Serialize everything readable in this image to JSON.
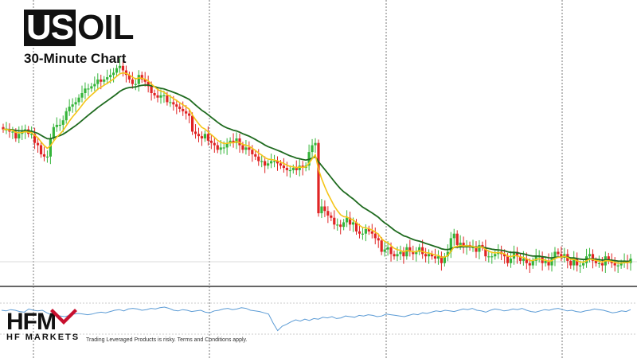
{
  "header": {
    "symbol_highlight": "US",
    "symbol_rest": "OIL",
    "subtitle": "30-Minute Chart"
  },
  "brand": {
    "logo_text": "HFM",
    "name": "HF MARKETS",
    "disclaimer": "Trading Leveraged Products is risky. Terms and Conditions apply."
  },
  "colors": {
    "bull": "#35b53a",
    "bear": "#e02424",
    "fast_ma": "#f5c518",
    "slow_ma": "#1f6b1f",
    "oscillator": "#5b9bd5",
    "grid": "#555555",
    "brand": "#111111",
    "brand_accent": "#c8102e"
  },
  "chart_data": {
    "type": "candlestick",
    "series": [
      {
        "kind": "candles",
        "close": [
          64,
          64,
          63,
          63,
          60,
          62,
          63,
          64,
          62,
          62,
          58,
          57,
          53,
          52,
          52,
          60,
          65,
          66,
          66,
          68,
          72,
          74,
          75,
          76,
          78,
          80,
          82,
          82,
          83,
          84,
          86,
          85,
          86,
          87,
          88,
          89,
          91,
          92,
          90,
          88,
          86,
          84,
          84,
          88,
          86,
          85,
          83,
          80,
          79,
          78,
          79,
          79,
          76,
          76,
          75,
          74,
          73,
          72,
          71,
          70,
          63,
          62,
          61,
          60,
          62,
          59,
          58,
          57,
          55,
          56,
          56,
          58,
          59,
          58,
          60,
          57,
          55,
          56,
          55,
          53,
          52,
          50,
          50,
          48,
          49,
          50,
          50,
          49,
          48,
          47,
          46,
          46,
          47,
          46,
          48,
          47,
          48,
          54,
          57,
          58,
          27,
          30,
          28,
          26,
          25,
          22,
          22,
          21,
          23,
          25,
          22,
          23,
          19,
          18,
          18,
          20,
          19,
          18,
          16,
          15,
          10,
          11,
          12,
          9,
          8,
          9,
          10,
          8,
          12,
          10,
          9,
          10,
          12,
          9,
          8,
          9,
          8,
          7,
          8,
          5,
          8,
          10,
          16,
          18,
          13,
          14,
          12,
          13,
          12,
          12,
          10,
          13,
          12,
          8,
          8,
          8,
          9,
          10,
          9,
          8,
          5,
          7,
          10,
          8,
          6,
          7,
          5,
          4,
          6,
          8,
          8,
          5,
          6,
          4,
          7,
          10,
          9,
          8,
          9,
          6,
          4,
          7,
          4,
          4,
          5,
          8,
          9,
          6,
          5,
          5,
          4,
          8,
          6,
          5,
          4,
          4,
          5,
          6,
          5,
          7
        ]
      },
      {
        "kind": "fast_ma"
      },
      {
        "kind": "slow_ma"
      },
      {
        "kind": "oscillator",
        "values": [
          50,
          49,
          51,
          50,
          48,
          47,
          52,
          50,
          49,
          50,
          46,
          43,
          42,
          41,
          40,
          42,
          44,
          45,
          44,
          43,
          44,
          46,
          47,
          46,
          48,
          50,
          51,
          49,
          52,
          53,
          52,
          50,
          51,
          53,
          52,
          54,
          55,
          53,
          50,
          49,
          51,
          50,
          48,
          49,
          50,
          47,
          46,
          49,
          50,
          52,
          53,
          51,
          52,
          54,
          53,
          50,
          49,
          48,
          46,
          44,
          30,
          18,
          25,
          28,
          32,
          35,
          33,
          36,
          34,
          37,
          36,
          39,
          38,
          40,
          37,
          38,
          41,
          40,
          39,
          42,
          41,
          43,
          42,
          40,
          41,
          44,
          43,
          42,
          41,
          40,
          42,
          44,
          43,
          46,
          45,
          47,
          49,
          48,
          50,
          49,
          48,
          50,
          52,
          51,
          53,
          50,
          49,
          47,
          50,
          52,
          51,
          49,
          50,
          52,
          51,
          53,
          50,
          48,
          47,
          49,
          51,
          50,
          52,
          53,
          51,
          49,
          50,
          48,
          47,
          49,
          50,
          52,
          51,
          50,
          48,
          46,
          47,
          49,
          48,
          51
        ]
      }
    ],
    "xlabel": "",
    "ylabel": "",
    "grid": "vertical dashed separators",
    "legend": "none"
  }
}
